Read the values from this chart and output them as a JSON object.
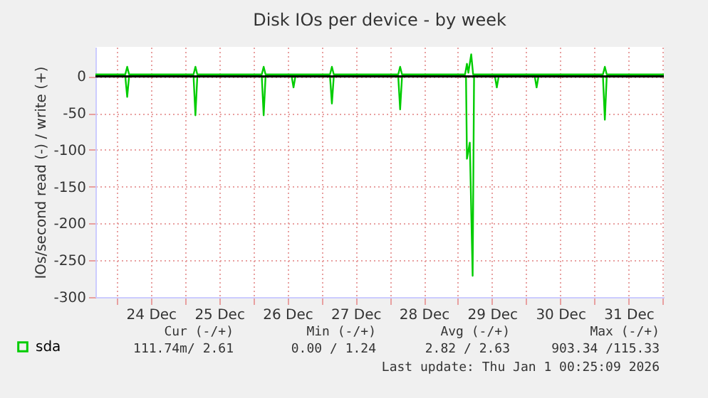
{
  "chart_data": {
    "type": "line",
    "title": "Disk IOs per device - by week",
    "ylabel": "IOs/second read (-) / write (+)",
    "xlim": [
      "2025-12-23T16:30",
      "2026-01-01T00:25"
    ],
    "xticks": [
      {
        "value": "2025-12-24T00:00",
        "label": null
      },
      {
        "value": "2025-12-24T12:00",
        "label": "24 Dec"
      },
      {
        "value": "2025-12-25T00:00",
        "label": null
      },
      {
        "value": "2025-12-25T12:00",
        "label": "25 Dec"
      },
      {
        "value": "2025-12-26T00:00",
        "label": null
      },
      {
        "value": "2025-12-26T12:00",
        "label": "26 Dec"
      },
      {
        "value": "2025-12-27T00:00",
        "label": null
      },
      {
        "value": "2025-12-27T12:00",
        "label": "27 Dec"
      },
      {
        "value": "2025-12-28T00:00",
        "label": null
      },
      {
        "value": "2025-12-28T12:00",
        "label": "28 Dec"
      },
      {
        "value": "2025-12-29T00:00",
        "label": null
      },
      {
        "value": "2025-12-29T12:00",
        "label": "29 Dec"
      },
      {
        "value": "2025-12-30T00:00",
        "label": null
      },
      {
        "value": "2025-12-30T12:00",
        "label": "30 Dec"
      },
      {
        "value": "2025-12-31T00:00",
        "label": null
      },
      {
        "value": "2025-12-31T12:00",
        "label": "31 Dec"
      },
      {
        "value": "2026-01-01T00:00",
        "label": null
      }
    ],
    "ylim": [
      -300,
      40
    ],
    "yticks": [
      0,
      -50,
      -100,
      -150,
      -200,
      -250,
      -300
    ],
    "grid": true,
    "legend": "bottom left",
    "line_style": "solid",
    "ref_lines": [
      {
        "axis": "y",
        "value": 0,
        "color": "#000000"
      }
    ],
    "series": [
      {
        "name": "sda",
        "color": "#00cc00",
        "x": [
          "2025-12-23T16:30",
          "2025-12-24T03:00",
          "2025-12-24T03:40",
          "2025-12-24T04:20",
          "2025-12-25T03:00",
          "2025-12-25T03:40",
          "2025-12-25T04:20",
          "2025-12-26T03:00",
          "2025-12-26T03:40",
          "2025-12-26T04:20",
          "2025-12-27T03:00",
          "2025-12-27T03:40",
          "2025-12-27T04:20",
          "2025-12-28T03:00",
          "2025-12-28T03:40",
          "2025-12-28T04:20",
          "2025-12-29T02:30",
          "2025-12-29T03:10",
          "2025-12-29T03:40",
          "2025-12-29T04:40",
          "2025-12-29T05:20",
          "2025-12-31T03:00",
          "2025-12-31T03:40",
          "2025-12-31T04:20",
          "2026-01-01T00:25"
        ],
        "values": [
          2.6,
          2.6,
          13,
          2.6,
          2.6,
          13,
          2.6,
          2.6,
          13,
          2.6,
          2.6,
          13,
          2.6,
          2.6,
          13,
          2.6,
          2.6,
          17,
          5,
          30,
          2.6,
          2.6,
          13,
          2.6,
          2.6
        ]
      },
      {
        "color": "#00cc00",
        "x": [
          "2025-12-23T16:30",
          "2025-12-24T03:00",
          "2025-12-24T03:40",
          "2025-12-24T04:20",
          "2025-12-25T03:00",
          "2025-12-25T03:40",
          "2025-12-25T04:20",
          "2025-12-26T03:00",
          "2025-12-26T03:40",
          "2025-12-26T04:20",
          "2025-12-26T13:30",
          "2025-12-26T14:10",
          "2025-12-26T14:50",
          "2025-12-27T03:00",
          "2025-12-27T03:40",
          "2025-12-27T04:20",
          "2025-12-28T03:00",
          "2025-12-28T03:40",
          "2025-12-28T04:20",
          "2025-12-29T02:50",
          "2025-12-29T03:10",
          "2025-12-29T04:10",
          "2025-12-29T05:10",
          "2025-12-29T05:40",
          "2025-12-29T13:00",
          "2025-12-29T13:40",
          "2025-12-29T14:20",
          "2025-12-30T03:00",
          "2025-12-30T03:40",
          "2025-12-30T04:20",
          "2025-12-31T03:00",
          "2025-12-31T03:40",
          "2025-12-31T04:20",
          "2026-01-01T00:25"
        ],
        "values": [
          0,
          0,
          -28,
          0,
          0,
          -53,
          0,
          0,
          -53,
          0,
          0,
          -15,
          0,
          0,
          -37,
          0,
          0,
          -45,
          0,
          0,
          -112,
          -90,
          -271,
          0,
          0,
          -15,
          0,
          0,
          -15,
          0,
          0,
          -59,
          0,
          0
        ]
      }
    ],
    "annotations": [
      "Cur (-/+)",
      "Min (-/+)",
      "Avg (-/+)",
      "Max (-/+)",
      "111.74m/  2.61",
      "0.00 /  1.24",
      "2.82 /  2.63",
      "903.34 /115.33",
      "Last update:  Thu Jan  1 00:25:09 2026"
    ]
  }
}
